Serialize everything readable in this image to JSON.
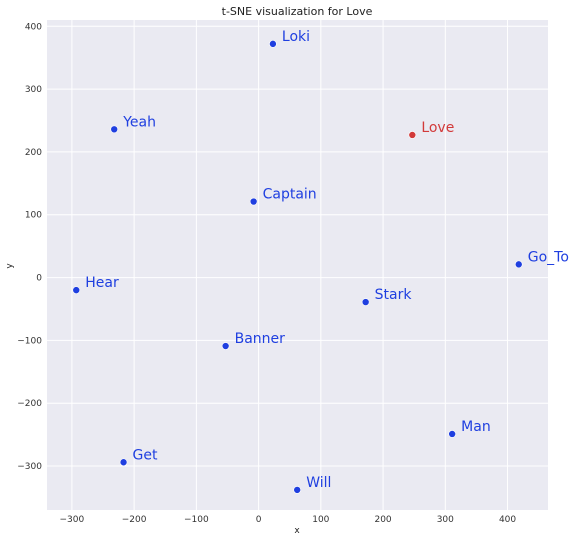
{
  "chart_data": {
    "type": "scatter",
    "title": "t-SNE visualization for Love",
    "xlabel": "x",
    "ylabel": "y",
    "xlim": [
      -340,
      465
    ],
    "ylim": [
      -370,
      410
    ],
    "xticks": [
      -300,
      -200,
      -100,
      0,
      100,
      200,
      300,
      400
    ],
    "yticks": [
      -300,
      -200,
      -100,
      0,
      100,
      200,
      300,
      400
    ],
    "grid": true,
    "colors": {
      "normal": "#1f3fe0",
      "highlight": "#d23a3a",
      "plot_bg": "#eaeaf2",
      "grid": "#ffffff"
    },
    "points": [
      {
        "label": "Loki",
        "x": 23,
        "y": 372,
        "highlight": false
      },
      {
        "label": "Yeah",
        "x": -232,
        "y": 236,
        "highlight": false
      },
      {
        "label": "Love",
        "x": 247,
        "y": 227,
        "highlight": true
      },
      {
        "label": "Captain",
        "x": -8,
        "y": 121,
        "highlight": false
      },
      {
        "label": "Go_To",
        "x": 418,
        "y": 21,
        "highlight": false
      },
      {
        "label": "Hear",
        "x": -293,
        "y": -20,
        "highlight": false
      },
      {
        "label": "Stark",
        "x": 172,
        "y": -39,
        "highlight": false
      },
      {
        "label": "Banner",
        "x": -53,
        "y": -109,
        "highlight": false
      },
      {
        "label": "Man",
        "x": 311,
        "y": -249,
        "highlight": false
      },
      {
        "label": "Get",
        "x": -217,
        "y": -294,
        "highlight": false
      },
      {
        "label": "Will",
        "x": 62,
        "y": -338,
        "highlight": false
      }
    ]
  }
}
